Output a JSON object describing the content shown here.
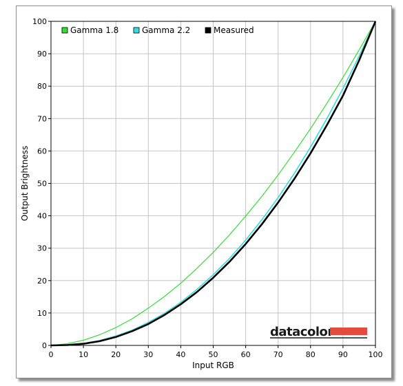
{
  "chart_data": {
    "type": "line",
    "title": "",
    "xlabel": "Input RGB",
    "ylabel": "Output Brightness",
    "xlim": [
      0,
      100
    ],
    "ylim": [
      0,
      100
    ],
    "x_ticks": [
      "0",
      "10",
      "20",
      "30",
      "40",
      "50",
      "60",
      "70",
      "80",
      "90",
      "100"
    ],
    "y_ticks": [
      "0",
      "10",
      "20",
      "30",
      "40",
      "50",
      "60",
      "70",
      "80",
      "90",
      "100"
    ],
    "grid": true,
    "legend_position": "top-left",
    "x": [
      0,
      5,
      10,
      15,
      20,
      25,
      30,
      35,
      40,
      45,
      50,
      55,
      60,
      65,
      70,
      75,
      80,
      85,
      90,
      95,
      100
    ],
    "series": [
      {
        "name": "Gamma 1.8",
        "color": "#33dd33",
        "values": [
          0,
          0.5,
          1.6,
          3.3,
          5.5,
          8.2,
          11.5,
          15.1,
          19.2,
          23.8,
          28.7,
          34.1,
          39.9,
          46.0,
          52.6,
          59.6,
          66.9,
          74.6,
          82.7,
          91.2,
          100
        ]
      },
      {
        "name": "Gamma 2.2",
        "color": "#33dddd",
        "values": [
          0,
          0.1,
          0.6,
          1.5,
          2.9,
          4.7,
          7.1,
          9.9,
          13.3,
          17.3,
          21.8,
          26.8,
          32.5,
          38.8,
          45.6,
          53.1,
          61.2,
          69.9,
          79.3,
          89.3,
          100
        ]
      },
      {
        "name": "Measured",
        "color": "#000000",
        "values": [
          0,
          0.1,
          0.5,
          1.3,
          2.6,
          4.4,
          6.6,
          9.4,
          12.7,
          16.5,
          20.9,
          25.8,
          31.3,
          37.4,
          44.1,
          51.4,
          59.3,
          67.9,
          77.1,
          88.0,
          100
        ]
      }
    ],
    "brand": "datacolor",
    "brand_bar_color": "#e54a3f"
  }
}
